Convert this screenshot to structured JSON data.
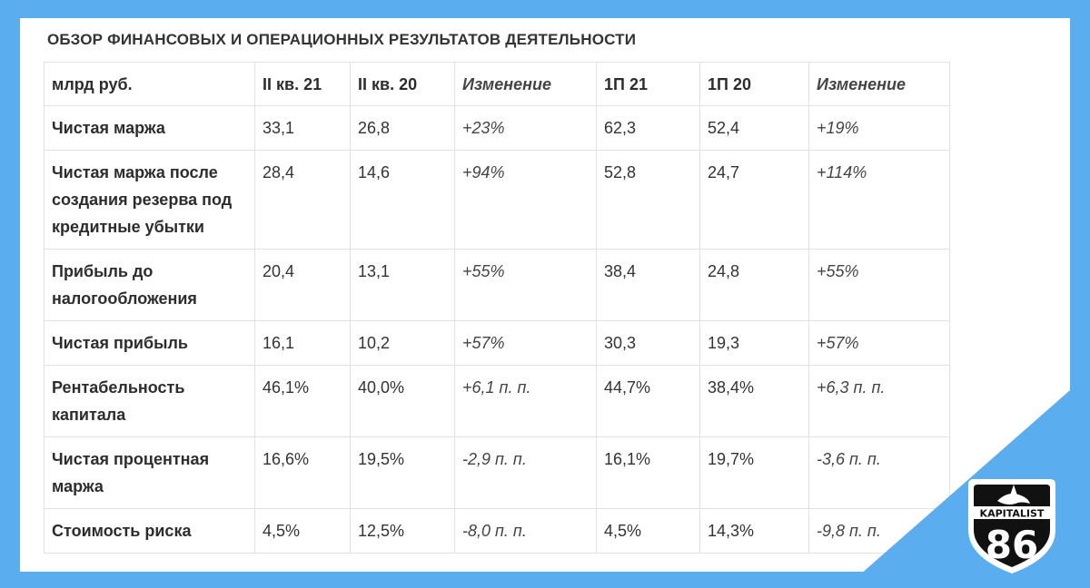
{
  "title": "ОБЗОР ФИНАНСОВЫХ И ОПЕРАЦИОННЫХ РЕЗУЛЬТАТОВ ДЕЯТЕЛЬНОСТИ",
  "table": {
    "headers": [
      "млрд руб.",
      "II кв. 21",
      "II кв. 20",
      "Изменение",
      "1П 21",
      "1П 20",
      "Изменение"
    ],
    "rows": [
      {
        "label": "Чистая маржа",
        "q21": "33,1",
        "q20": "26,8",
        "q_chg": "+23%",
        "h21": "62,3",
        "h20": "52,4",
        "h_chg": "+19%"
      },
      {
        "label": "Чистая маржа после создания резерва под кредитные убытки",
        "q21": "28,4",
        "q20": "14,6",
        "q_chg": "+94%",
        "h21": "52,8",
        "h20": "24,7",
        "h_chg": "+114%"
      },
      {
        "label": "Прибыль до налогообложения",
        "q21": "20,4",
        "q20": "13,1",
        "q_chg": "+55%",
        "h21": "38,4",
        "h20": "24,8",
        "h_chg": "+55%"
      },
      {
        "label": "Чистая прибыль",
        "q21": "16,1",
        "q20": "10,2",
        "q_chg": "+57%",
        "h21": "30,3",
        "h20": "19,3",
        "h_chg": "+57%"
      },
      {
        "label": "Рентабельность капитала",
        "q21": "46,1%",
        "q20": "40,0%",
        "q_chg": "+6,1 п. п.",
        "h21": "44,7%",
        "h20": "38,4%",
        "h_chg": "+6,3 п. п."
      },
      {
        "label": "Чистая процентная маржа",
        "q21": "16,6%",
        "q20": "19,5%",
        "q_chg": "-2,9 п. п.",
        "h21": "16,1%",
        "h20": "19,7%",
        "h_chg": "-3,6 п. п."
      },
      {
        "label": "Стоимость риска",
        "q21": "4,5%",
        "q20": "12,5%",
        "q_chg": "-8,0 п. п.",
        "h21": "4,5%",
        "h20": "14,3%",
        "h_chg": "-9,8 п. п."
      }
    ]
  },
  "logo": {
    "text": "KAPITALIST",
    "number": "86",
    "icon": "orca-icon"
  },
  "colors": {
    "background": "#5aaef0",
    "panel": "#ffffff",
    "text": "#333333",
    "border": "#e2e2e2"
  }
}
